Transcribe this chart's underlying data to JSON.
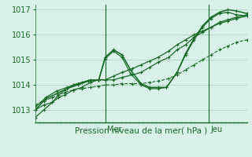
{
  "title": "",
  "xlabel": "Pression niveau de la mer( hPa )",
  "ylabel": "",
  "bg_color": "#d8f0e8",
  "plot_bg_color": "#d8f0e8",
  "grid_color": "#b0d8c8",
  "line_color": "#1a6b2a",
  "ylim": [
    1012.5,
    1017.2
  ],
  "day_labels": [
    "Mer",
    "Jeu"
  ],
  "day_positions": [
    0.33,
    0.82
  ],
  "series": [
    {
      "x": [
        0.0,
        0.04,
        0.08,
        0.11,
        0.14,
        0.18,
        0.22,
        0.26,
        0.3,
        0.33,
        0.37,
        0.41,
        0.46,
        0.5,
        0.54,
        0.58,
        0.63,
        0.67,
        0.71,
        0.75,
        0.79,
        0.83,
        0.87,
        0.91,
        0.95,
        1.0
      ],
      "y": [
        1013.0,
        1013.2,
        1013.3,
        1013.5,
        1013.6,
        1013.8,
        1013.9,
        1014.1,
        1014.2,
        1014.2,
        1014.2,
        1014.3,
        1014.4,
        1014.5,
        1014.7,
        1014.9,
        1015.1,
        1015.4,
        1015.6,
        1015.9,
        1016.1,
        1016.3,
        1016.5,
        1016.6,
        1016.7,
        1016.8
      ],
      "linestyle": "-",
      "linewidth": 0.9
    },
    {
      "x": [
        0.0,
        0.04,
        0.08,
        0.11,
        0.14,
        0.18,
        0.22,
        0.26,
        0.3,
        0.33,
        0.37,
        0.41,
        0.46,
        0.5,
        0.54,
        0.58,
        0.63,
        0.67,
        0.71,
        0.75,
        0.79,
        0.83,
        0.87,
        0.91,
        0.95,
        1.0
      ],
      "y": [
        1012.7,
        1013.0,
        1013.3,
        1013.6,
        1013.8,
        1014.0,
        1014.1,
        1014.2,
        1014.2,
        1014.2,
        1014.35,
        1014.5,
        1014.65,
        1014.8,
        1014.95,
        1015.1,
        1015.35,
        1015.6,
        1015.8,
        1016.0,
        1016.15,
        1016.3,
        1016.45,
        1016.55,
        1016.65,
        1016.75
      ],
      "linestyle": "-",
      "linewidth": 0.9
    },
    {
      "x": [
        0.0,
        0.05,
        0.1,
        0.15,
        0.2,
        0.25,
        0.3,
        0.33,
        0.37,
        0.41,
        0.45,
        0.5,
        0.54,
        0.58,
        0.62,
        0.67,
        0.71,
        0.75,
        0.79,
        0.83,
        0.87,
        0.91,
        0.95,
        1.0
      ],
      "y": [
        1013.1,
        1013.5,
        1013.75,
        1013.9,
        1014.05,
        1014.15,
        1014.2,
        1015.05,
        1015.35,
        1015.1,
        1014.45,
        1014.0,
        1013.85,
        1013.85,
        1013.9,
        1014.5,
        1015.2,
        1015.8,
        1016.3,
        1016.65,
        1016.85,
        1016.9,
        1016.8,
        1016.75
      ],
      "linestyle": "-",
      "linewidth": 0.9
    },
    {
      "x": [
        0.0,
        0.05,
        0.1,
        0.15,
        0.2,
        0.25,
        0.3,
        0.33,
        0.37,
        0.41,
        0.45,
        0.5,
        0.54,
        0.58,
        0.62,
        0.67,
        0.71,
        0.75,
        0.79,
        0.83,
        0.87,
        0.91,
        0.95,
        1.0
      ],
      "y": [
        1013.0,
        1013.45,
        1013.65,
        1013.85,
        1014.0,
        1014.15,
        1014.2,
        1015.1,
        1015.4,
        1015.2,
        1014.6,
        1014.05,
        1013.9,
        1013.9,
        1013.9,
        1014.5,
        1015.25,
        1015.85,
        1016.35,
        1016.7,
        1016.9,
        1017.0,
        1016.95,
        1016.85
      ],
      "linestyle": "-",
      "linewidth": 1.1
    },
    {
      "x": [
        0.0,
        0.04,
        0.08,
        0.11,
        0.14,
        0.18,
        0.22,
        0.26,
        0.3,
        0.33,
        0.37,
        0.41,
        0.46,
        0.5,
        0.54,
        0.58,
        0.63,
        0.67,
        0.71,
        0.75,
        0.79,
        0.83,
        0.87,
        0.91,
        0.95,
        1.0
      ],
      "y": [
        1013.2,
        1013.35,
        1013.5,
        1013.6,
        1013.7,
        1013.8,
        1013.85,
        1013.9,
        1013.95,
        1014.0,
        1014.0,
        1014.05,
        1014.05,
        1014.05,
        1014.1,
        1014.15,
        1014.25,
        1014.4,
        1014.6,
        1014.8,
        1015.0,
        1015.2,
        1015.4,
        1015.55,
        1015.7,
        1015.8
      ],
      "linestyle": "--",
      "linewidth": 0.8
    }
  ]
}
